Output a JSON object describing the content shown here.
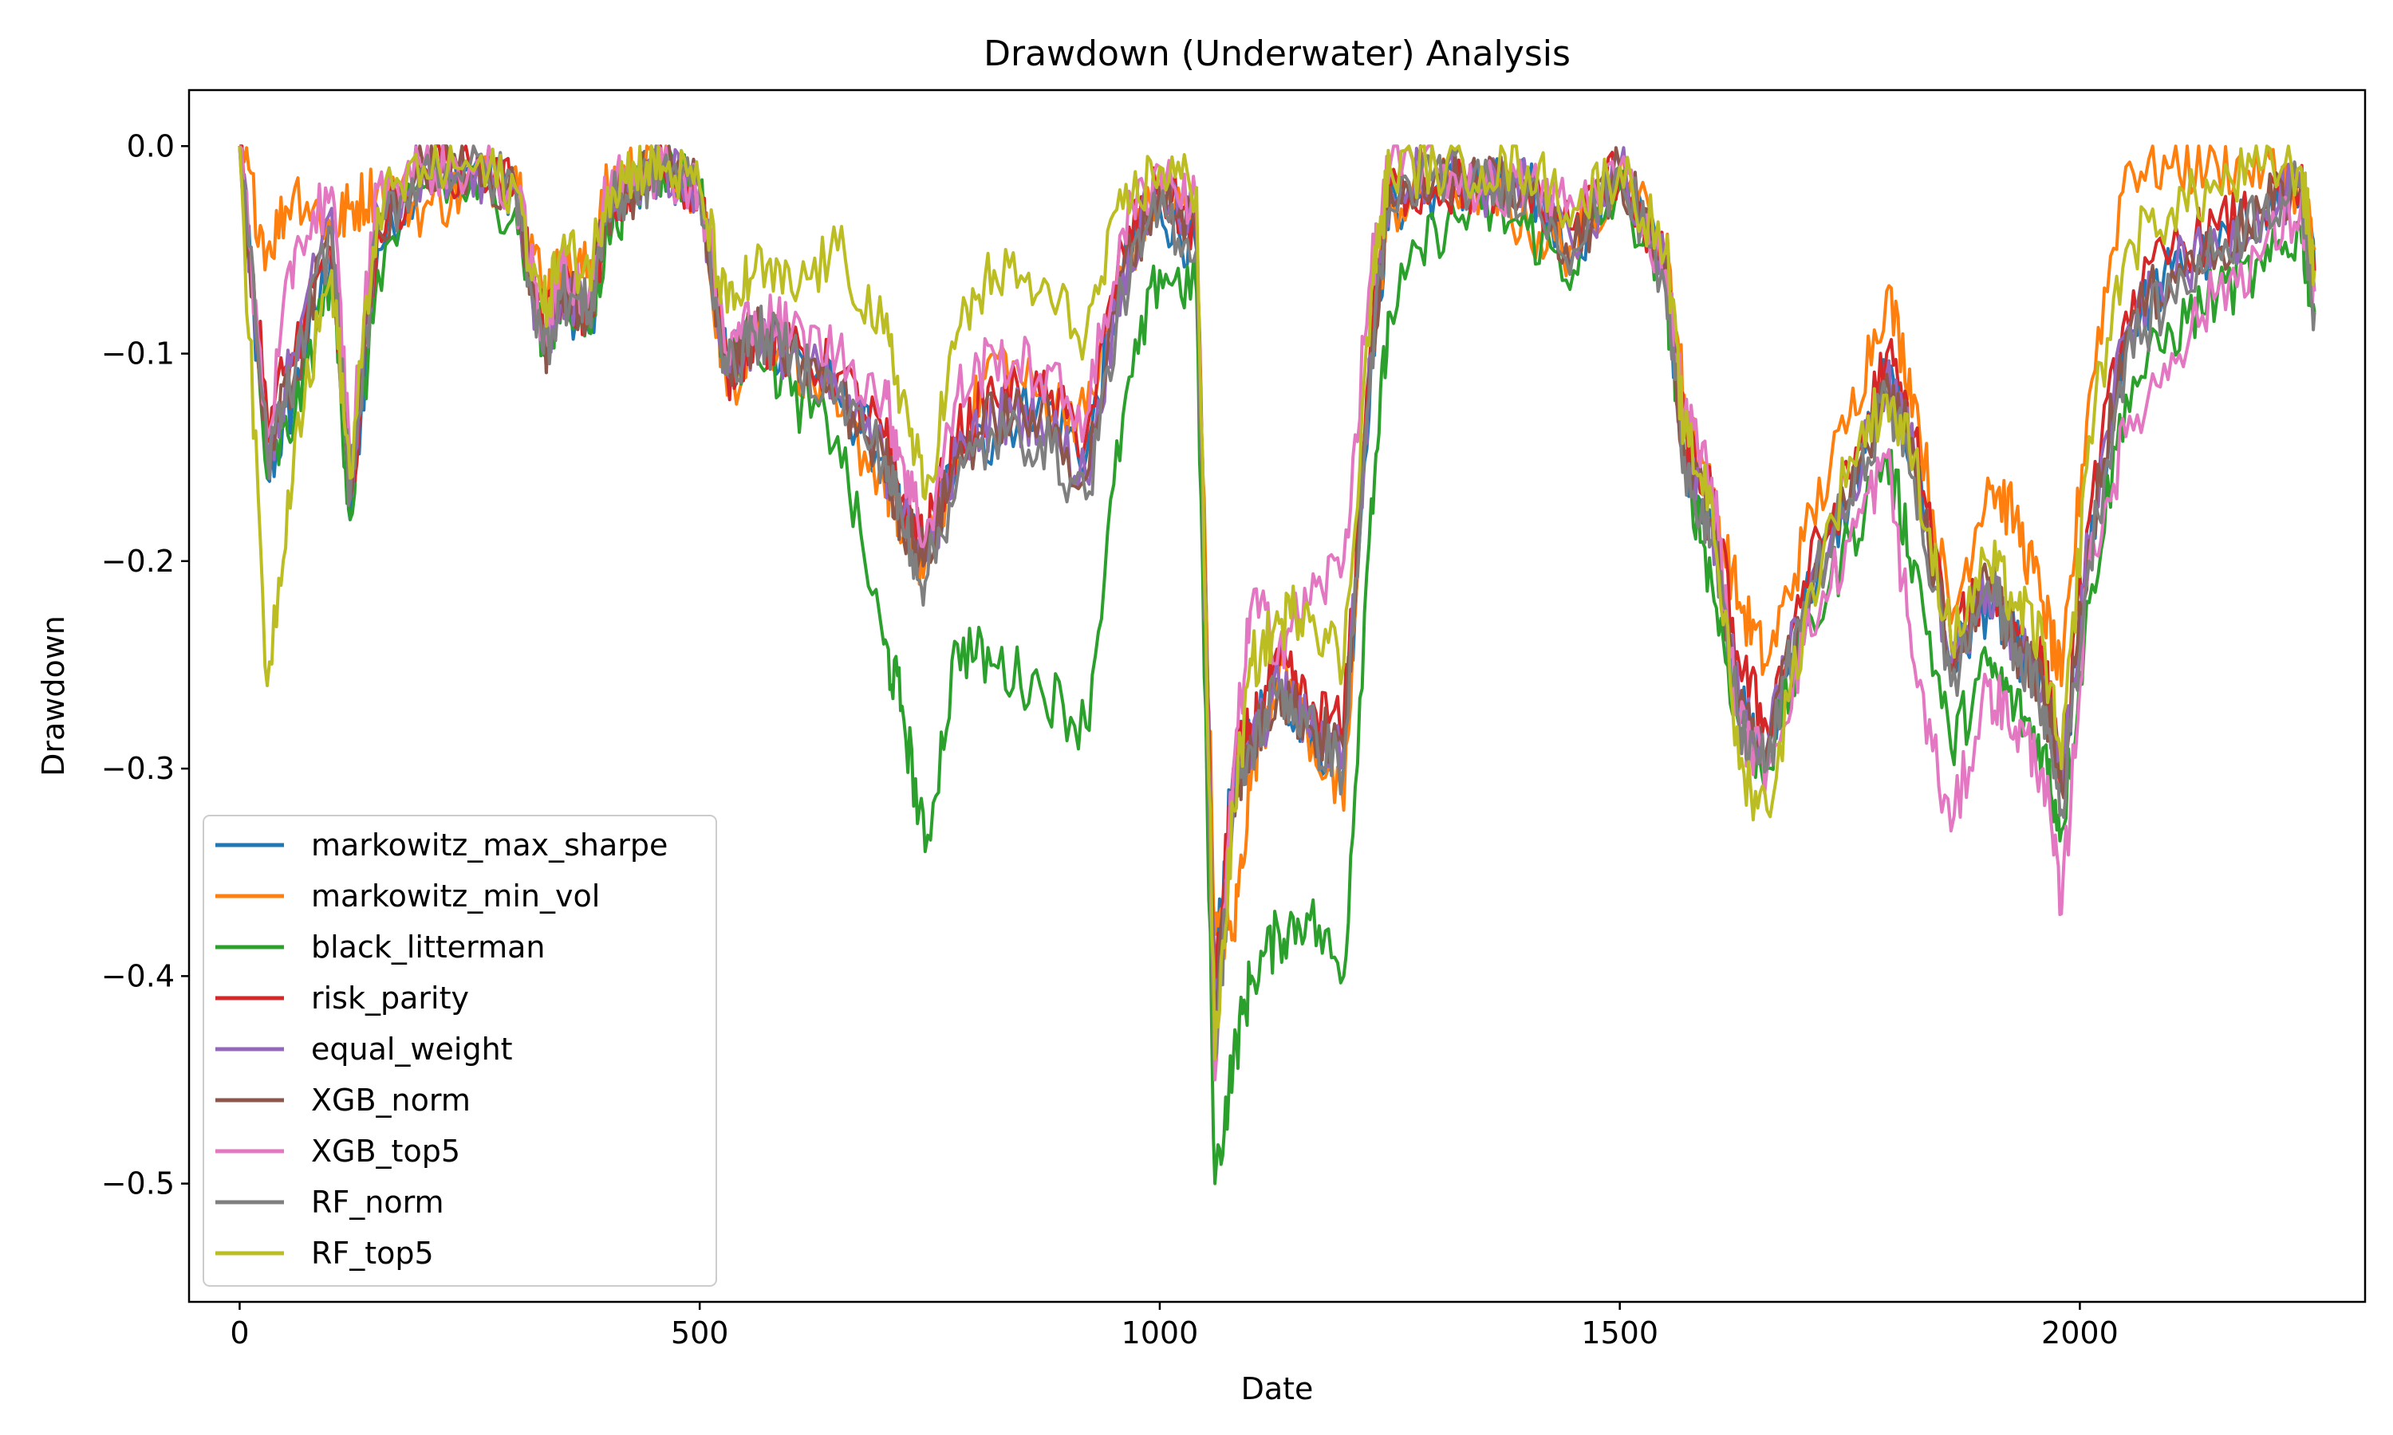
{
  "chart_data": {
    "type": "line",
    "title": "Drawdown (Underwater) Analysis",
    "xlabel": "Date",
    "ylabel": "Drawdown",
    "xlim": [
      -55,
      2310
    ],
    "ylim": [
      -0.557,
      0.027
    ],
    "xticks": [
      0,
      500,
      1000,
      1500,
      2000
    ],
    "xtick_labels": [
      "0",
      "500",
      "1000",
      "1500",
      "2000"
    ],
    "yticks": [
      0.0,
      -0.1,
      -0.2,
      -0.3,
      -0.4,
      -0.5
    ],
    "ytick_labels": [
      "0.0",
      "−0.1",
      "−0.2",
      "−0.3",
      "−0.4",
      "−0.5"
    ],
    "grid": false,
    "legend_position": "lower-left",
    "x": [
      0,
      30,
      60,
      100,
      120,
      150,
      200,
      250,
      300,
      330,
      350,
      380,
      400,
      430,
      460,
      500,
      530,
      560,
      600,
      650,
      700,
      720,
      745,
      780,
      820,
      870,
      920,
      960,
      1000,
      1040,
      1060,
      1080,
      1100,
      1130,
      1160,
      1200,
      1230,
      1250,
      1300,
      1350,
      1400,
      1450,
      1500,
      1550,
      1570,
      1600,
      1630,
      1660,
      1700,
      1750,
      1790,
      1820,
      1860,
      1900,
      1930,
      1960,
      1980,
      2010,
      2050,
      2100,
      2150,
      2200,
      2240,
      2255
    ],
    "series": [
      {
        "name": "markowitz_max_sharpe",
        "color": "#1f77b4",
        "values": [
          0,
          -0.16,
          -0.12,
          -0.05,
          -0.18,
          -0.05,
          -0.01,
          -0.01,
          -0.02,
          -0.1,
          -0.07,
          -0.09,
          -0.03,
          -0.02,
          -0.01,
          -0.02,
          -0.11,
          -0.09,
          -0.1,
          -0.12,
          -0.15,
          -0.18,
          -0.2,
          -0.15,
          -0.14,
          -0.12,
          -0.15,
          -0.06,
          -0.03,
          -0.05,
          -0.4,
          -0.3,
          -0.28,
          -0.26,
          -0.28,
          -0.3,
          -0.1,
          -0.03,
          -0.02,
          -0.02,
          -0.02,
          -0.05,
          -0.01,
          -0.06,
          -0.15,
          -0.18,
          -0.27,
          -0.3,
          -0.22,
          -0.17,
          -0.11,
          -0.15,
          -0.25,
          -0.22,
          -0.24,
          -0.26,
          -0.31,
          -0.2,
          -0.09,
          -0.06,
          -0.05,
          -0.03,
          -0.02,
          -0.06
        ]
      },
      {
        "name": "markowitz_min_vol",
        "color": "#ff7f0e",
        "values": [
          0,
          -0.05,
          -0.02,
          -0.04,
          -0.03,
          -0.02,
          -0.03,
          -0.02,
          -0.01,
          -0.07,
          -0.06,
          -0.06,
          -0.02,
          -0.01,
          -0.01,
          -0.02,
          -0.12,
          -0.09,
          -0.1,
          -0.13,
          -0.16,
          -0.19,
          -0.2,
          -0.15,
          -0.1,
          -0.12,
          -0.13,
          -0.06,
          -0.02,
          -0.04,
          -0.38,
          -0.38,
          -0.3,
          -0.25,
          -0.28,
          -0.32,
          -0.09,
          -0.03,
          -0.02,
          -0.02,
          -0.04,
          -0.05,
          -0.01,
          -0.05,
          -0.12,
          -0.17,
          -0.22,
          -0.25,
          -0.19,
          -0.13,
          -0.07,
          -0.12,
          -0.23,
          -0.16,
          -0.18,
          -0.22,
          -0.26,
          -0.12,
          -0.01,
          -0.01,
          -0.01,
          -0.01,
          -0.02,
          -0.05
        ]
      },
      {
        "name": "black_litterman",
        "color": "#2ca02c",
        "values": [
          0,
          -0.16,
          -0.13,
          -0.06,
          -0.18,
          -0.06,
          -0.02,
          -0.02,
          -0.03,
          -0.1,
          -0.07,
          -0.09,
          -0.04,
          -0.02,
          -0.01,
          -0.02,
          -0.11,
          -0.09,
          -0.12,
          -0.14,
          -0.24,
          -0.27,
          -0.34,
          -0.24,
          -0.25,
          -0.26,
          -0.28,
          -0.13,
          -0.06,
          -0.07,
          -0.5,
          -0.44,
          -0.4,
          -0.38,
          -0.37,
          -0.4,
          -0.17,
          -0.08,
          -0.04,
          -0.03,
          -0.04,
          -0.06,
          -0.02,
          -0.07,
          -0.15,
          -0.21,
          -0.28,
          -0.3,
          -0.24,
          -0.19,
          -0.15,
          -0.2,
          -0.29,
          -0.25,
          -0.27,
          -0.29,
          -0.33,
          -0.22,
          -0.12,
          -0.09,
          -0.07,
          -0.06,
          -0.04,
          -0.08
        ]
      },
      {
        "name": "risk_parity",
        "color": "#d62728",
        "values": [
          0,
          -0.13,
          -0.1,
          -0.05,
          -0.17,
          -0.04,
          -0.01,
          -0.01,
          -0.02,
          -0.09,
          -0.07,
          -0.08,
          -0.03,
          -0.02,
          -0.01,
          -0.02,
          -0.11,
          -0.09,
          -0.1,
          -0.11,
          -0.14,
          -0.17,
          -0.19,
          -0.14,
          -0.12,
          -0.12,
          -0.14,
          -0.05,
          -0.02,
          -0.04,
          -0.41,
          -0.3,
          -0.28,
          -0.25,
          -0.27,
          -0.28,
          -0.09,
          -0.02,
          -0.02,
          -0.02,
          -0.02,
          -0.04,
          -0.01,
          -0.06,
          -0.14,
          -0.17,
          -0.25,
          -0.28,
          -0.21,
          -0.16,
          -0.1,
          -0.14,
          -0.24,
          -0.21,
          -0.23,
          -0.25,
          -0.3,
          -0.18,
          -0.08,
          -0.05,
          -0.04,
          -0.03,
          -0.02,
          -0.06
        ]
      },
      {
        "name": "equal_weight",
        "color": "#9467bd",
        "values": [
          0,
          -0.15,
          -0.1,
          -0.03,
          -0.17,
          -0.03,
          -0.01,
          -0.01,
          -0.02,
          -0.1,
          -0.07,
          -0.08,
          -0.03,
          -0.02,
          -0.01,
          -0.02,
          -0.11,
          -0.09,
          -0.1,
          -0.12,
          -0.15,
          -0.18,
          -0.2,
          -0.15,
          -0.13,
          -0.13,
          -0.16,
          -0.06,
          -0.02,
          -0.04,
          -0.42,
          -0.31,
          -0.29,
          -0.26,
          -0.28,
          -0.29,
          -0.1,
          -0.02,
          -0.01,
          -0.02,
          -0.02,
          -0.05,
          -0.01,
          -0.06,
          -0.15,
          -0.18,
          -0.27,
          -0.29,
          -0.22,
          -0.17,
          -0.11,
          -0.15,
          -0.25,
          -0.21,
          -0.24,
          -0.26,
          -0.31,
          -0.19,
          -0.09,
          -0.06,
          -0.05,
          -0.03,
          -0.02,
          -0.07
        ]
      },
      {
        "name": "XGB_norm",
        "color": "#8c564b",
        "values": [
          0,
          -0.15,
          -0.11,
          -0.04,
          -0.17,
          -0.04,
          -0.01,
          -0.01,
          -0.02,
          -0.1,
          -0.07,
          -0.08,
          -0.03,
          -0.02,
          -0.01,
          -0.02,
          -0.11,
          -0.09,
          -0.1,
          -0.12,
          -0.15,
          -0.18,
          -0.2,
          -0.15,
          -0.13,
          -0.13,
          -0.16,
          -0.06,
          -0.02,
          -0.04,
          -0.42,
          -0.31,
          -0.29,
          -0.26,
          -0.28,
          -0.29,
          -0.1,
          -0.02,
          -0.01,
          -0.02,
          -0.02,
          -0.05,
          -0.01,
          -0.06,
          -0.15,
          -0.18,
          -0.27,
          -0.29,
          -0.22,
          -0.17,
          -0.11,
          -0.15,
          -0.25,
          -0.21,
          -0.24,
          -0.26,
          -0.31,
          -0.19,
          -0.09,
          -0.06,
          -0.05,
          -0.03,
          -0.02,
          -0.07
        ]
      },
      {
        "name": "XGB_top5",
        "color": "#e377c2",
        "values": [
          0,
          -0.14,
          -0.05,
          -0.02,
          -0.15,
          -0.02,
          -0.01,
          -0.01,
          -0.02,
          -0.09,
          -0.06,
          -0.07,
          -0.02,
          -0.01,
          -0.01,
          -0.02,
          -0.1,
          -0.08,
          -0.09,
          -0.1,
          -0.12,
          -0.15,
          -0.19,
          -0.12,
          -0.1,
          -0.11,
          -0.13,
          -0.04,
          -0.01,
          -0.03,
          -0.45,
          -0.3,
          -0.22,
          -0.24,
          -0.22,
          -0.2,
          -0.06,
          -0.01,
          -0.01,
          -0.02,
          -0.02,
          -0.03,
          -0.01,
          -0.06,
          -0.13,
          -0.16,
          -0.28,
          -0.3,
          -0.24,
          -0.19,
          -0.15,
          -0.25,
          -0.33,
          -0.26,
          -0.28,
          -0.3,
          -0.37,
          -0.2,
          -0.14,
          -0.1,
          -0.07,
          -0.05,
          -0.03,
          -0.07
        ]
      },
      {
        "name": "RF_norm",
        "color": "#7f7f7f",
        "values": [
          0,
          -0.15,
          -0.11,
          -0.04,
          -0.17,
          -0.04,
          -0.01,
          -0.01,
          -0.02,
          -0.1,
          -0.07,
          -0.08,
          -0.03,
          -0.02,
          -0.01,
          -0.02,
          -0.11,
          -0.09,
          -0.1,
          -0.12,
          -0.15,
          -0.18,
          -0.21,
          -0.16,
          -0.14,
          -0.14,
          -0.17,
          -0.07,
          -0.03,
          -0.05,
          -0.44,
          -0.32,
          -0.29,
          -0.26,
          -0.28,
          -0.3,
          -0.1,
          -0.03,
          -0.01,
          -0.02,
          -0.02,
          -0.05,
          -0.01,
          -0.07,
          -0.15,
          -0.19,
          -0.28,
          -0.3,
          -0.22,
          -0.17,
          -0.12,
          -0.16,
          -0.26,
          -0.21,
          -0.24,
          -0.27,
          -0.32,
          -0.2,
          -0.1,
          -0.07,
          -0.05,
          -0.03,
          -0.02,
          -0.08
        ]
      },
      {
        "name": "RF_top5",
        "color": "#bcbd22",
        "values": [
          0,
          -0.26,
          -0.14,
          -0.06,
          -0.16,
          -0.03,
          -0.01,
          -0.01,
          -0.02,
          -0.08,
          -0.05,
          -0.06,
          -0.02,
          -0.01,
          -0.01,
          -0.02,
          -0.08,
          -0.06,
          -0.07,
          -0.05,
          -0.09,
          -0.12,
          -0.17,
          -0.09,
          -0.06,
          -0.07,
          -0.09,
          -0.03,
          -0.01,
          -0.02,
          -0.44,
          -0.32,
          -0.25,
          -0.23,
          -0.22,
          -0.25,
          -0.07,
          -0.01,
          -0.01,
          -0.01,
          -0.01,
          -0.03,
          -0.01,
          -0.05,
          -0.14,
          -0.17,
          -0.3,
          -0.32,
          -0.23,
          -0.15,
          -0.12,
          -0.15,
          -0.24,
          -0.2,
          -0.22,
          -0.24,
          -0.3,
          -0.14,
          -0.05,
          -0.03,
          -0.02,
          -0.01,
          -0.01,
          -0.06
        ]
      }
    ]
  }
}
